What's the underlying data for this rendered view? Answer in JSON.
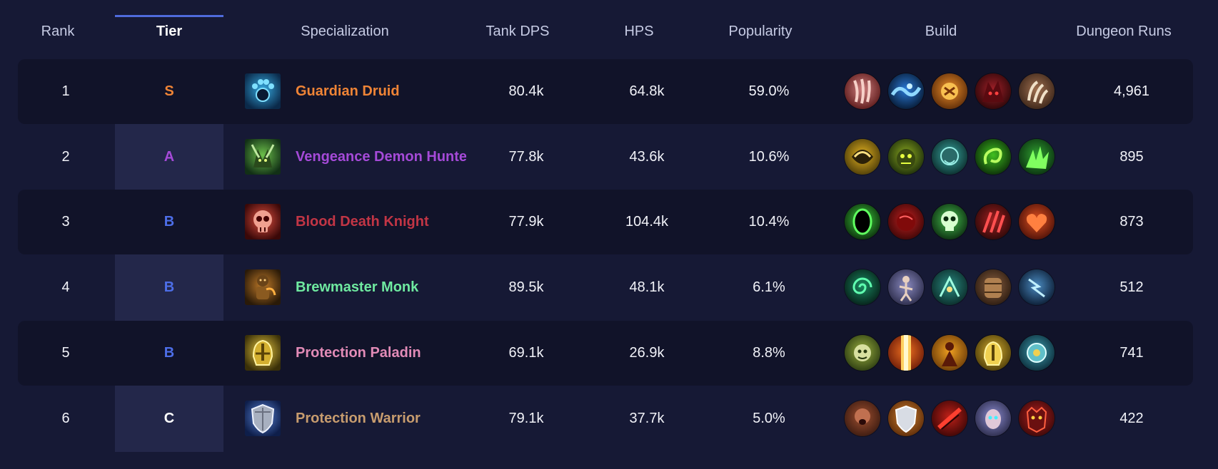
{
  "header": {
    "rank": "Rank",
    "tier": "Tier",
    "specialization": "Specialization",
    "tank_dps": "Tank DPS",
    "hps": "HPS",
    "popularity": "Popularity",
    "build": "Build",
    "dungeon_runs": "Dungeon Runs"
  },
  "tier_colors": {
    "S": "#ef8436",
    "A": "#a54ad8",
    "B": "#4d6ee8",
    "C": "#ffffff"
  },
  "rows": [
    {
      "rank": "1",
      "tier": "S",
      "tier_color": "#ef8436",
      "spec": "Guardian Druid",
      "spec_color": "#ef8436",
      "spec_icon": "bear-paw-icon",
      "tank_dps": "80.4k",
      "hps": "64.8k",
      "popularity": "59.0%",
      "runs": "4,961",
      "build": [
        "claw-red-icon",
        "wave-blue-icon",
        "rage-orange-icon",
        "beast-red-icon",
        "claw-brown-icon"
      ]
    },
    {
      "rank": "2",
      "tier": "A",
      "tier_color": "#a54ad8",
      "spec": "Vengeance Demon Hunter",
      "spec_color": "#a54ad8",
      "spec_icon": "demon-horns-icon",
      "tank_dps": "77.8k",
      "hps": "43.6k",
      "popularity": "10.6%",
      "runs": "895",
      "build": [
        "chaos-gold-icon",
        "demon-face-icon",
        "spirit-teal-icon",
        "fel-green-icon",
        "fel-claw-icon"
      ]
    },
    {
      "rank": "3",
      "tier": "B",
      "tier_color": "#4d6ee8",
      "spec": "Blood Death Knight",
      "spec_color": "#c23545",
      "spec_icon": "skull-red-icon",
      "tank_dps": "77.9k",
      "hps": "104.4k",
      "popularity": "10.4%",
      "runs": "873",
      "build": [
        "void-ring-icon",
        "blood-orb-icon",
        "skull-green-icon",
        "blood-claw-icon",
        "heart-flame-icon"
      ]
    },
    {
      "rank": "4",
      "tier": "B",
      "tier_color": "#4d6ee8",
      "spec": "Brewmaster Monk",
      "spec_color": "#6fe9a0",
      "spec_icon": "brewmaster-icon",
      "tank_dps": "89.5k",
      "hps": "48.1k",
      "popularity": "6.1%",
      "runs": "512",
      "build": [
        "vortex-green-icon",
        "monk-figure-icon",
        "jade-strike-icon",
        "keg-icon",
        "storm-blue-icon"
      ]
    },
    {
      "rank": "5",
      "tier": "B",
      "tier_color": "#4d6ee8",
      "spec": "Protection Paladin",
      "spec_color": "#e28bb7",
      "spec_icon": "holy-helm-icon",
      "tank_dps": "69.1k",
      "hps": "26.9k",
      "popularity": "8.8%",
      "runs": "741",
      "build": [
        "guardian-face-icon",
        "light-pillar-icon",
        "holy-figure-icon",
        "golden-helm-icon",
        "holy-shield-icon"
      ]
    },
    {
      "rank": "6",
      "tier": "C",
      "tier_color": "#ffffff",
      "spec": "Protection Warrior",
      "spec_color": "#c79c6e",
      "spec_icon": "warrior-shield-icon",
      "tank_dps": "79.1k",
      "hps": "37.7k",
      "popularity": "5.0%",
      "runs": "422",
      "build": [
        "warrior-roar-icon",
        "steel-shield-icon",
        "red-slash-icon",
        "spectral-face-icon",
        "demon-mask-icon"
      ]
    }
  ]
}
